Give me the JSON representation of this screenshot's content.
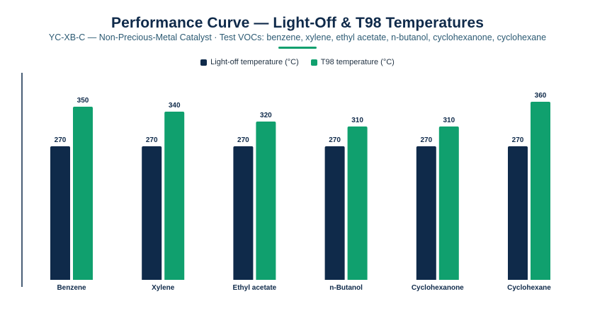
{
  "colors": {
    "series1": "#0f2a4a",
    "series2": "#10a06e",
    "accent": "#10a06e",
    "axis": "#0f2a4a"
  },
  "chart_data": {
    "type": "bar",
    "title": "Performance Curve — Light-Off & T98 Temperatures",
    "subtitle": "YC-XB-C — Non-Precious-Metal Catalyst · Test VOCs: benzene, xylene, ethyl acetate, n-butanol, cyclohexanone, cyclohexane",
    "categories": [
      "Benzene",
      "Xylene",
      "Ethyl acetate",
      "n-Butanol",
      "Cyclohexanone",
      "Cyclohexane"
    ],
    "series": [
      {
        "name": "Light-off temperature (°C)",
        "values": [
          270,
          270,
          270,
          270,
          270,
          270
        ]
      },
      {
        "name": "T98 temperature (°C)",
        "values": [
          350,
          340,
          320,
          310,
          310,
          360
        ]
      }
    ],
    "ylim": [
      0,
      380
    ],
    "grid": false,
    "legend_position": "top-center",
    "data_labels": true
  }
}
